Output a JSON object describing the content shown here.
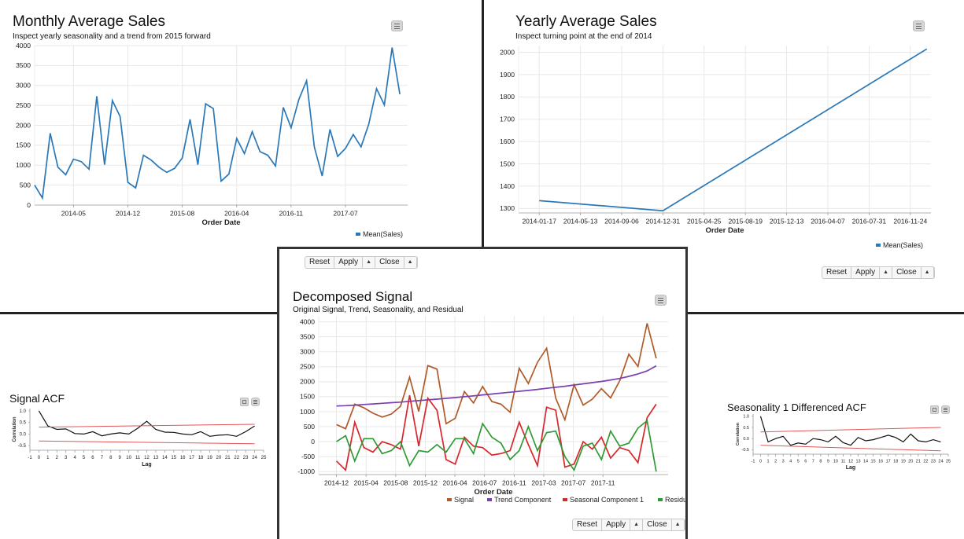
{
  "controls": {
    "reset": "Reset",
    "apply": "Apply",
    "close": "Close",
    "arrow": "▲"
  },
  "chart_data": [
    {
      "id": "monthly",
      "type": "line",
      "title": "Monthly Average Sales",
      "subtitle": "Inspect yearly seasonality and a trend from 2015 forward",
      "xlabel": "Order Date",
      "ylabel": "",
      "ylim": [
        0,
        4000
      ],
      "yticks": [
        0,
        500,
        1000,
        1500,
        2000,
        2500,
        3000,
        3500,
        4000
      ],
      "xlim": [
        0,
        48
      ],
      "xticks": [
        {
          "x": 5,
          "label": "2014-05"
        },
        {
          "x": 12,
          "label": "2014-12"
        },
        {
          "x": 19,
          "label": "2015-08"
        },
        {
          "x": 26,
          "label": "2016-04"
        },
        {
          "x": 33,
          "label": "2016-11"
        },
        {
          "x": 40,
          "label": "2017-07"
        }
      ],
      "grid": true,
      "legend": "bottom-right",
      "series": [
        {
          "name": "Mean(Sales)",
          "color": "#2a78b8",
          "x": [
            0,
            1,
            2,
            3,
            4,
            5,
            6,
            7,
            8,
            9,
            10,
            11,
            12,
            13,
            14,
            15,
            16,
            17,
            18,
            19,
            20,
            21,
            22,
            23,
            24,
            25,
            26,
            27,
            28,
            29,
            30,
            31,
            32,
            33,
            34,
            35,
            36,
            37,
            38,
            39,
            40,
            41,
            42,
            43,
            44,
            45,
            46,
            47
          ],
          "values": [
            500,
            175,
            1800,
            950,
            760,
            1150,
            1090,
            900,
            2730,
            1010,
            2620,
            2220,
            570,
            430,
            1250,
            1130,
            950,
            820,
            920,
            1180,
            2150,
            1010,
            2540,
            2420,
            600,
            780,
            1670,
            1290,
            1840,
            1340,
            1250,
            980,
            2450,
            1940,
            2650,
            3120,
            1450,
            730,
            1900,
            1220,
            1420,
            1770,
            1460,
            2030,
            2920,
            2510,
            3950,
            2780
          ]
        }
      ]
    },
    {
      "id": "yearly",
      "type": "line",
      "title": "Yearly Average Sales",
      "subtitle": "Inspect turning point at the end of 2014",
      "xlabel": "Order Date",
      "ylabel": "",
      "ylim": [
        1280,
        2030
      ],
      "yticks": [
        1300,
        1400,
        1500,
        1600,
        1700,
        1800,
        1900,
        2000
      ],
      "xlim": [
        0,
        10
      ],
      "xticks": [
        {
          "x": 0.5,
          "label": "2014-01-17"
        },
        {
          "x": 1.5,
          "label": "2014-05-13"
        },
        {
          "x": 2.5,
          "label": "2014-09-06"
        },
        {
          "x": 3.5,
          "label": "2014-12-31"
        },
        {
          "x": 4.5,
          "label": "2015-04-25"
        },
        {
          "x": 5.5,
          "label": "2015-08-19"
        },
        {
          "x": 6.5,
          "label": "2015-12-13"
        },
        {
          "x": 7.5,
          "label": "2016-04-07"
        },
        {
          "x": 8.5,
          "label": "2016-07-31"
        },
        {
          "x": 9.5,
          "label": "2016-11-24"
        }
      ],
      "grid": true,
      "legend": "bottom-right",
      "series": [
        {
          "name": "Mean(Sales)",
          "color": "#2a78b8",
          "x": [
            0.5,
            3.5,
            9.9
          ],
          "values": [
            1335,
            1290,
            2015
          ]
        }
      ]
    },
    {
      "id": "decomposed",
      "type": "line",
      "title": "Decomposed Signal",
      "subtitle": "Original Signal, Trend, Seasonality, and Residual",
      "xlabel": "Order Date",
      "ylabel": "",
      "ylim": [
        -1100,
        4200
      ],
      "yticks": [
        -1000,
        -500,
        0,
        500,
        1000,
        1500,
        2000,
        2500,
        3000,
        3500,
        4000
      ],
      "xlim": [
        0,
        49
      ],
      "xticks": [
        {
          "x": 1,
          "label": "2014-12"
        },
        {
          "x": 7,
          "label": "2015-04"
        },
        {
          "x": 13,
          "label": "2015-08"
        },
        {
          "x": 19,
          "label": "2015-12"
        },
        {
          "x": 25,
          "label": "2016-04"
        },
        {
          "x": 31,
          "label": "2016-07"
        },
        {
          "x": 37,
          "label": "2016-11"
        },
        {
          "x": 43,
          "label": "2017-03"
        },
        {
          "x": 49,
          "label": "2017-07"
        },
        {
          "x": 55,
          "label": "2017-11"
        }
      ],
      "grid": true,
      "legend": "bottom-right",
      "series": [
        {
          "name": "Signal",
          "color": "#b05a28",
          "values": [
            570,
            430,
            1250,
            1130,
            950,
            820,
            920,
            1180,
            2150,
            1010,
            2540,
            2420,
            600,
            780,
            1670,
            1290,
            1840,
            1340,
            1250,
            980,
            2450,
            1940,
            2650,
            3120,
            1450,
            730,
            1900,
            1220,
            1420,
            1770,
            1460,
            2030,
            2920,
            2510,
            3950,
            2780
          ]
        },
        {
          "name": "Trend Component",
          "color": "#7b3fb0",
          "values": [
            1190,
            1200,
            1220,
            1240,
            1260,
            1280,
            1300,
            1320,
            1345,
            1370,
            1395,
            1420,
            1445,
            1470,
            1500,
            1530,
            1560,
            1590,
            1620,
            1650,
            1680,
            1710,
            1745,
            1780,
            1815,
            1850,
            1890,
            1930,
            1970,
            2010,
            2060,
            2110,
            2180,
            2260,
            2360,
            2530
          ]
        },
        {
          "name": "Seasonal Component 1",
          "color": "#d9262b",
          "values": [
            -650,
            -950,
            650,
            -200,
            -350,
            0,
            -100,
            -250,
            1550,
            -150,
            1450,
            1050,
            -600,
            -750,
            150,
            -150,
            -200,
            -450,
            -400,
            -300,
            650,
            -100,
            -800,
            1150,
            1050,
            -850,
            -750,
            0,
            -250,
            150,
            -550,
            -200,
            -300,
            -700,
            800,
            1250
          ]
        },
        {
          "name": "Residual",
          "color": "#2f9a35",
          "values": [
            0,
            200,
            -650,
            100,
            100,
            -400,
            -300,
            0,
            -800,
            -300,
            -350,
            -100,
            -350,
            100,
            100,
            -400,
            600,
            150,
            -50,
            -600,
            -300,
            500,
            -300,
            300,
            350,
            -500,
            -950,
            -150,
            -50,
            -600,
            350,
            -150,
            -50,
            450,
            700,
            -1000
          ]
        }
      ]
    },
    {
      "id": "signal_acf",
      "type": "line",
      "title": "Signal ACF",
      "xlabel": "Lag",
      "ylabel": "Correlation",
      "ylim": [
        -0.7,
        1.1
      ],
      "yticks": [
        -0.5,
        0.0,
        0.5,
        1.0
      ],
      "ytick_labels": [
        "-0.5",
        "0.0",
        "0.5",
        "1.0"
      ],
      "xlim": [
        -1,
        25
      ],
      "xticks": [
        -1,
        0,
        1,
        2,
        3,
        4,
        5,
        6,
        7,
        8,
        9,
        10,
        11,
        12,
        13,
        14,
        15,
        16,
        17,
        18,
        19,
        20,
        21,
        22,
        23,
        24,
        25
      ],
      "grid": false,
      "series": [
        {
          "name": "",
          "color": "#111111",
          "values": [
            1.0,
            0.35,
            0.2,
            0.22,
            0.02,
            0.0,
            0.1,
            -0.08,
            0.0,
            0.05,
            0.0,
            0.25,
            0.55,
            0.2,
            0.08,
            0.07,
            0.0,
            -0.03,
            0.1,
            -0.1,
            -0.05,
            -0.03,
            -0.1,
            0.1,
            0.35
          ]
        },
        {
          "name": "",
          "color": "#e05555",
          "values": [
            0.3,
            0.42
          ]
        },
        {
          "name": "",
          "color": "#e05555",
          "values": [
            -0.3,
            -0.42
          ]
        }
      ]
    },
    {
      "id": "seasonality_acf",
      "type": "line",
      "title": "Seasonality 1 Differenced ACF",
      "xlabel": "Lag",
      "ylabel": "Correlation",
      "ylim": [
        -0.7,
        1.1
      ],
      "yticks": [
        -0.5,
        0.0,
        0.5,
        1.0
      ],
      "ytick_labels": [
        "-0.5",
        "0.0",
        "0.5",
        "1.0"
      ],
      "xlim": [
        -1,
        25
      ],
      "xticks": [
        -1,
        0,
        1,
        2,
        3,
        4,
        5,
        6,
        7,
        8,
        9,
        10,
        11,
        12,
        13,
        14,
        15,
        16,
        17,
        18,
        19,
        20,
        21,
        22,
        23,
        24,
        25
      ],
      "grid": false,
      "series": [
        {
          "name": "",
          "color": "#111111",
          "values": [
            1.0,
            -0.15,
            0.0,
            0.1,
            -0.3,
            -0.2,
            -0.25,
            0.0,
            -0.05,
            -0.15,
            0.1,
            -0.18,
            -0.3,
            0.05,
            -0.1,
            -0.05,
            0.05,
            0.15,
            0.05,
            -0.15,
            0.2,
            -0.1,
            -0.15,
            -0.05,
            -0.15
          ]
        },
        {
          "name": "",
          "color": "#e05555",
          "values": [
            0.3,
            0.5
          ]
        },
        {
          "name": "",
          "color": "#e05555",
          "values": [
            -0.3,
            -0.55
          ]
        }
      ]
    }
  ]
}
